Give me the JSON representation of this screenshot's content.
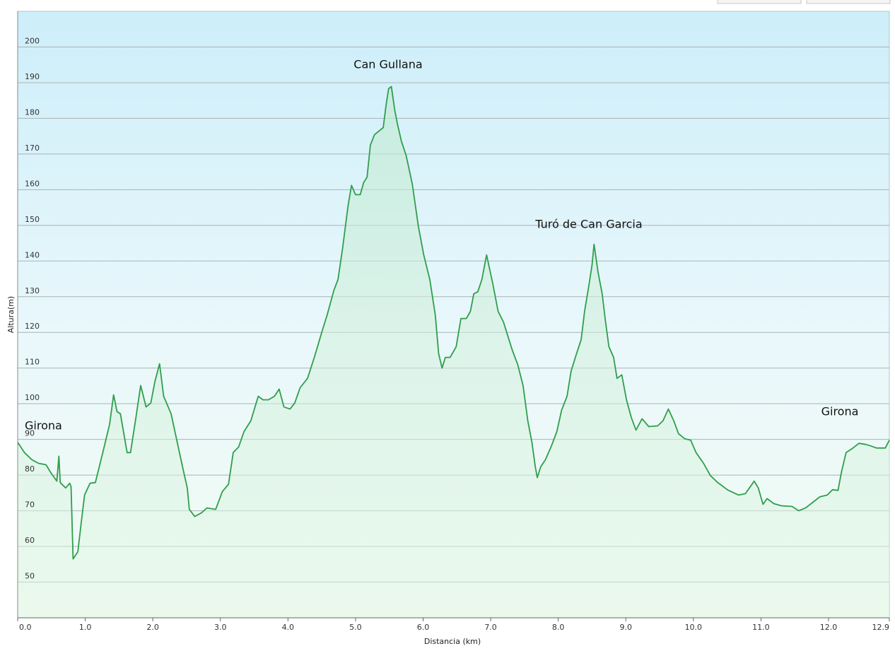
{
  "chart_data": {
    "type": "area",
    "x_label": "Distancia  (km)",
    "y_label": "Altura(m)",
    "annotations": [
      "Girona",
      "Can Gullana",
      "Turó de Can Garcia",
      "Girona"
    ],
    "color": "#2f9e4c",
    "grid": true,
    "xlim": [
      0,
      12.9
    ],
    "ylim": [
      40,
      210
    ],
    "xticks": [
      {
        "value": 0,
        "label": "0.0"
      },
      {
        "value": 1,
        "label": "1.0"
      },
      {
        "value": 2,
        "label": "2.0"
      },
      {
        "value": 3,
        "label": "3.0"
      },
      {
        "value": 4,
        "label": "4.0"
      },
      {
        "value": 5,
        "label": "5.0"
      },
      {
        "value": 6,
        "label": "6.0"
      },
      {
        "value": 7,
        "label": "7.0"
      },
      {
        "value": 8,
        "label": "8.0"
      },
      {
        "value": 9,
        "label": "9.0"
      },
      {
        "value": 10,
        "label": "10.0"
      },
      {
        "value": 11,
        "label": "11.0"
      },
      {
        "value": 12,
        "label": "12.0"
      },
      12.9
    ],
    "yticks": [
      50,
      60,
      70,
      80,
      90,
      100,
      110,
      120,
      130,
      140,
      150,
      160,
      170,
      180,
      190,
      200
    ],
    "x": [
      0,
      0.1,
      0.21,
      0.31,
      0.42,
      0.49,
      0.58,
      0.61,
      0.63,
      0.71,
      0.77,
      0.79,
      0.82,
      0.89,
      0.94,
      0.99,
      1.07,
      1.15,
      1.26,
      1.36,
      1.42,
      1.47,
      1.52,
      1.62,
      1.67,
      1.75,
      1.82,
      1.9,
      1.97,
      2.03,
      2.1,
      2.16,
      2.27,
      2.35,
      2.44,
      2.51,
      2.54,
      2.62,
      2.72,
      2.8,
      2.93,
      3.03,
      3.12,
      3.19,
      3.27,
      3.35,
      3.45,
      3.56,
      3.63,
      3.71,
      3.8,
      3.87,
      3.94,
      4.03,
      4.1,
      4.18,
      4.29,
      4.39,
      4.5,
      4.58,
      4.68,
      4.74,
      4.81,
      4.89,
      4.94,
      5.0,
      5.07,
      5.12,
      5.17,
      5.22,
      5.28,
      5.37,
      5.41,
      5.45,
      5.49,
      5.53,
      5.58,
      5.62,
      5.68,
      5.75,
      5.84,
      5.93,
      6.01,
      6.1,
      6.18,
      6.23,
      6.28,
      6.33,
      6.4,
      6.49,
      6.56,
      6.64,
      6.7,
      6.75,
      6.81,
      6.87,
      6.94,
      7.03,
      7.11,
      7.19,
      7.27,
      7.32,
      7.4,
      7.48,
      7.55,
      7.61,
      7.66,
      7.69,
      7.74,
      7.81,
      7.9,
      7.98,
      8.05,
      8.13,
      8.19,
      8.26,
      8.34,
      8.39,
      8.45,
      8.5,
      8.53,
      8.59,
      8.65,
      8.7,
      8.75,
      8.82,
      8.87,
      8.94,
      9.01,
      9.08,
      9.15,
      9.24,
      9.34,
      9.47,
      9.55,
      9.63,
      9.71,
      9.78,
      9.87,
      9.96,
      10.04,
      10.15,
      10.25,
      10.36,
      10.51,
      10.67,
      10.77,
      10.9,
      10.96,
      11.03,
      11.09,
      11.19,
      11.3,
      11.46,
      11.56,
      11.66,
      11.77,
      11.87,
      11.98,
      12.06,
      12.14,
      12.19,
      12.26,
      12.34,
      12.45,
      12.55,
      12.62,
      12.71,
      12.84,
      12.9
    ],
    "values": [
      89.2,
      86.3,
      84.3,
      83.3,
      82.9,
      80.7,
      78.3,
      85.3,
      77.9,
      76.4,
      77.7,
      76.8,
      56.5,
      58.5,
      66.5,
      74.4,
      77.7,
      77.9,
      86.3,
      94.2,
      102.5,
      97.8,
      97.2,
      86.3,
      86.3,
      96.2,
      105.1,
      99.1,
      100.2,
      106.1,
      111.2,
      102.1,
      97.2,
      90.2,
      82.3,
      76.4,
      70.4,
      68.4,
      69.4,
      70.8,
      70.4,
      75.4,
      77.4,
      86.3,
      87.9,
      92.2,
      95.2,
      102.1,
      101.1,
      101.1,
      102.1,
      104.1,
      99.1,
      98.5,
      100.2,
      104.5,
      107.1,
      113.0,
      120.0,
      124.9,
      131.8,
      134.8,
      143.7,
      155.6,
      161.2,
      158.6,
      158.6,
      162.0,
      163.5,
      172.5,
      175.4,
      176.8,
      177.4,
      183.4,
      188.3,
      188.9,
      182.4,
      178.4,
      173.5,
      169.5,
      161.6,
      149.7,
      141.7,
      134.8,
      124.9,
      114.0,
      110.0,
      113.0,
      113.0,
      116.0,
      123.9,
      123.9,
      125.9,
      130.8,
      131.4,
      134.8,
      141.7,
      133.8,
      125.9,
      122.9,
      118.0,
      115.0,
      111.0,
      105.1,
      95.2,
      89.2,
      82.3,
      79.3,
      82.3,
      84.3,
      88.2,
      92.2,
      98.2,
      102.1,
      109.1,
      113.4,
      118.0,
      125.9,
      132.8,
      138.8,
      144.7,
      136.8,
      130.8,
      122.9,
      116.0,
      113.0,
      107.1,
      108.1,
      101.1,
      96.2,
      92.6,
      95.8,
      93.6,
      93.8,
      95.2,
      98.5,
      95.2,
      91.6,
      90.2,
      89.8,
      86.3,
      83.3,
      79.9,
      77.9,
      75.8,
      74.4,
      74.8,
      78.3,
      76.4,
      71.8,
      73.4,
      72.0,
      71.4,
      71.2,
      70.0,
      70.8,
      72.4,
      73.9,
      74.4,
      75.9,
      75.7,
      80.7,
      86.3,
      87.3,
      88.9,
      88.6,
      88.2,
      87.6,
      87.6,
      89.8
    ]
  }
}
